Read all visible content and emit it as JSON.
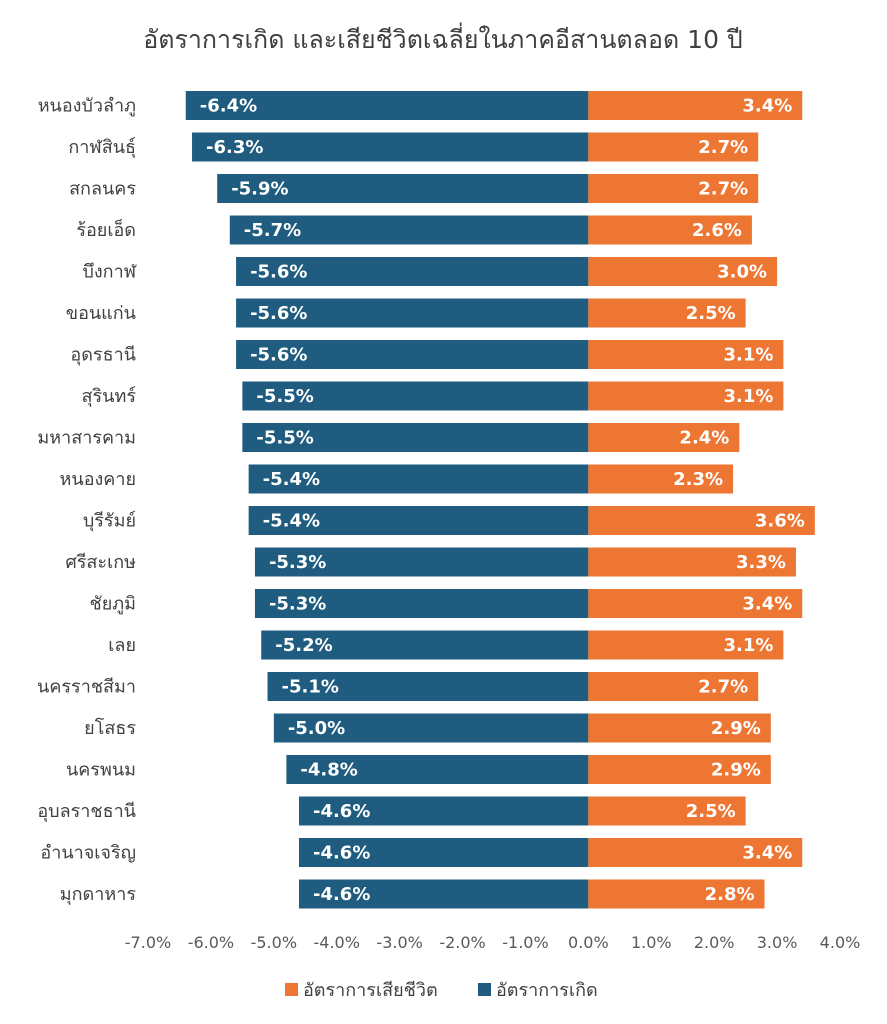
{
  "chart_data": {
    "type": "bar",
    "orientation": "horizontal",
    "title": "อัตราการเกิด และเสียชีวิตเฉลี่ยในภาคอีสานตลอด 10 ปี",
    "categories": [
      "หนองบัวลำภู",
      "กาฬสินธุ์",
      "สกลนคร",
      "ร้อยเอ็ด",
      "บึงกาฬ",
      "ขอนแก่น",
      "อุดรธานี",
      "สุรินทร์",
      "มหาสารคาม",
      "หนองคาย",
      "บุรีรัมย์",
      "ศรีสะเกษ",
      "ชัยภูมิ",
      "เลย",
      "นครราชสีมา",
      "ยโสธร",
      "นครพนม",
      "อุบลราชธานี",
      "อำนาจเจริญ",
      "มุกดาหาร"
    ],
    "series": [
      {
        "name": "อัตราการเกิด",
        "color": "#1f5c7f",
        "values": [
          -6.4,
          -6.3,
          -5.9,
          -5.7,
          -5.6,
          -5.6,
          -5.6,
          -5.5,
          -5.5,
          -5.4,
          -5.4,
          -5.3,
          -5.3,
          -5.2,
          -5.1,
          -5.0,
          -4.8,
          -4.6,
          -4.6,
          -4.6
        ],
        "labels": [
          "-6.4%",
          "-6.3%",
          "-5.9%",
          "-5.7%",
          "-5.6%",
          "-5.6%",
          "-5.6%",
          "-5.5%",
          "-5.5%",
          "-5.4%",
          "-5.4%",
          "-5.3%",
          "-5.3%",
          "-5.2%",
          "-5.1%",
          "-5.0%",
          "-4.8%",
          "-4.6%",
          "-4.6%",
          "-4.6%"
        ]
      },
      {
        "name": "อัตราการเสียชีวิต",
        "color": "#ee7633",
        "values": [
          3.4,
          2.7,
          2.7,
          2.6,
          3.0,
          2.5,
          3.1,
          3.1,
          2.4,
          2.3,
          3.6,
          3.3,
          3.4,
          3.1,
          2.7,
          2.9,
          2.9,
          2.5,
          3.4,
          2.8
        ],
        "labels": [
          "3.4%",
          "2.7%",
          "2.7%",
          "2.6%",
          "3.0%",
          "2.5%",
          "3.1%",
          "3.1%",
          "2.4%",
          "2.3%",
          "3.6%",
          "3.3%",
          "3.4%",
          "3.1%",
          "2.7%",
          "2.9%",
          "2.9%",
          "2.5%",
          "3.4%",
          "2.8%"
        ]
      }
    ],
    "xlim": [
      -7.0,
      4.0
    ],
    "xticks": [
      -7.0,
      -6.0,
      -5.0,
      -4.0,
      -3.0,
      -2.0,
      -1.0,
      0.0,
      1.0,
      2.0,
      3.0,
      4.0
    ],
    "xtick_labels": [
      "-7.0%",
      "-6.0%",
      "-5.0%",
      "-4.0%",
      "-3.0%",
      "-2.0%",
      "-1.0%",
      "0.0%",
      "1.0%",
      "2.0%",
      "3.0%",
      "4.0%"
    ],
    "grid": false,
    "legend": {
      "position": "bottom",
      "items": [
        {
          "label": "อัตราการเสียชีวิต",
          "color": "#ee7633"
        },
        {
          "label": "อัตราการเกิด",
          "color": "#1f5c7f"
        }
      ]
    }
  }
}
